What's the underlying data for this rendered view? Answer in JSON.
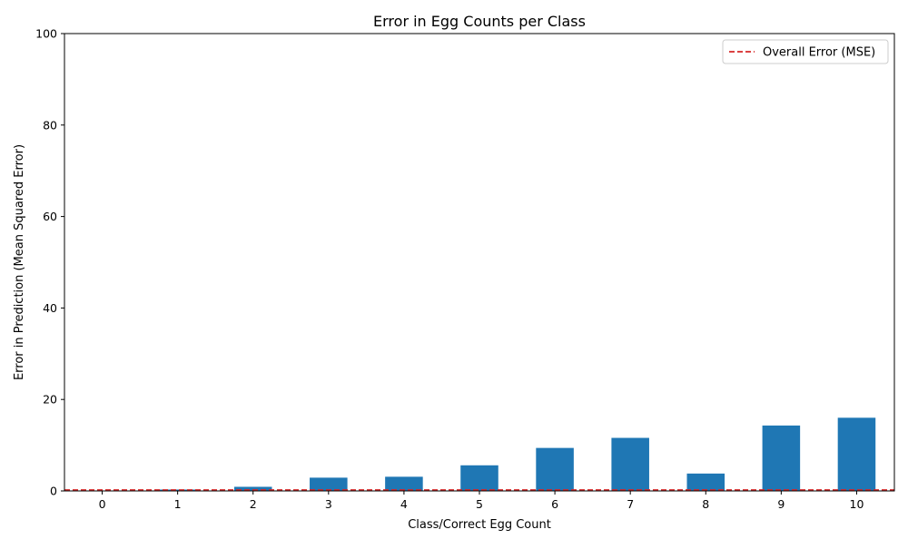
{
  "chart_data": {
    "type": "bar",
    "title": "Error in Egg Counts per Class",
    "xlabel": "Class/Correct Egg Count",
    "ylabel": "Error in Prediction (Mean Squared Error)",
    "categories": [
      "0",
      "1",
      "2",
      "3",
      "4",
      "5",
      "6",
      "7",
      "8",
      "9",
      "10"
    ],
    "values": [
      0.0,
      0.3,
      0.9,
      2.9,
      3.1,
      5.6,
      9.4,
      11.6,
      3.8,
      14.3,
      16.0
    ],
    "ylim": [
      0,
      100
    ],
    "yticks": [
      "0",
      "20",
      "40",
      "60",
      "80",
      "100"
    ],
    "bar_color": "#1f77b4",
    "reference_line": {
      "label": "Overall Error (MSE)",
      "value": 0.2,
      "color": "#d62728",
      "style": "dashed"
    },
    "legend_position": "upper right",
    "grid": false
  }
}
